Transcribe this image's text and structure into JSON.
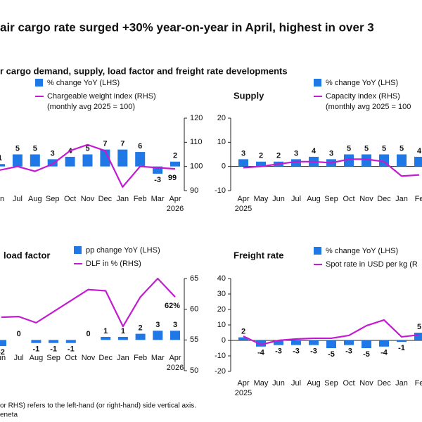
{
  "title": "air cargo rate surged +30% year-on-year in April, highest in over 3",
  "subtitle": "r cargo demand, supply, load factor and freight rate developments",
  "notes": [
    "or RHS) refers to the left-hand (or right-hand) side vertical axis.",
    "eneta"
  ],
  "chart_data": [
    {
      "type": "combo",
      "categories": [
        [
          "un"
        ],
        [
          "Jul"
        ],
        [
          "Aug"
        ],
        [
          "Sep"
        ],
        [
          "Oct"
        ],
        [
          "Nov"
        ],
        [
          "Dec"
        ],
        [
          "Jan"
        ],
        [
          "Feb"
        ],
        [
          "Mar"
        ],
        [
          "Apr",
          "2026"
        ]
      ],
      "ylim": [
        -10,
        20
      ],
      "y2lim": [
        90,
        120
      ],
      "y2ticks": [
        90,
        100,
        110,
        120
      ],
      "series": [
        {
          "type": "bar",
          "name": "% change YoY (LHS)",
          "color": "#1f78e6",
          "values": [
            1,
            5,
            5,
            3,
            4,
            5,
            7,
            7,
            6,
            -3,
            2
          ]
        },
        {
          "type": "line",
          "axis": "y2",
          "name": "Chargeable weight index (RHS)",
          "subname": "(monthly avg 2025 = 100)",
          "color": "#c21bd1",
          "values": [
            98.5,
            100,
            98,
            101,
            106.5,
            109,
            106.5,
            91.5,
            100,
            99.5,
            99
          ],
          "value_labels": [
            null,
            null,
            null,
            null,
            null,
            null,
            null,
            null,
            null,
            null,
            "99"
          ]
        }
      ]
    },
    {
      "type": "combo",
      "title": "Supply",
      "categories": [
        [
          "Apr",
          "2025"
        ],
        [
          "May"
        ],
        [
          "Jun"
        ],
        [
          "Jul"
        ],
        [
          "Aug"
        ],
        [
          "Sep"
        ],
        [
          "Oct"
        ],
        [
          "Nov"
        ],
        [
          "Dec"
        ],
        [
          "Jan"
        ],
        [
          "Fe"
        ]
      ],
      "ylim": [
        -10,
        20
      ],
      "yticks": [
        -10,
        0,
        10,
        20
      ],
      "y2lim": [
        90,
        120
      ],
      "series": [
        {
          "type": "bar",
          "name": "% change YoY (LHS)",
          "color": "#1f78e6",
          "values": [
            3,
            2,
            2,
            3,
            4,
            3,
            5,
            5,
            5,
            5,
            4
          ]
        },
        {
          "type": "line",
          "axis": "y2",
          "name": "Capacity index (RHS)",
          "subname": "(monthly avg 2025 = 100",
          "color": "#c21bd1",
          "values": [
            99.5,
            100,
            101,
            102,
            102,
            101.5,
            103,
            103,
            102,
            96,
            96.5
          ]
        }
      ]
    },
    {
      "type": "combo",
      "title": "load factor",
      "categories": [
        [
          "un"
        ],
        [
          "Jul"
        ],
        [
          "Aug"
        ],
        [
          "Sep"
        ],
        [
          "Oct"
        ],
        [
          "Nov"
        ],
        [
          "Dec"
        ],
        [
          "Jan"
        ],
        [
          "Feb"
        ],
        [
          "Mar"
        ],
        [
          "Apr",
          "2026"
        ]
      ],
      "ylim": [
        -10,
        20
      ],
      "y2lim": [
        50,
        65
      ],
      "y2ticks": [
        50,
        55,
        60,
        65
      ],
      "series": [
        {
          "type": "bar",
          "name": "pp change YoY (LHS)",
          "color": "#1f78e6",
          "values": [
            -2,
            0,
            -1,
            -1,
            -1,
            0,
            1,
            1,
            2,
            3,
            3
          ]
        },
        {
          "type": "line",
          "axis": "y2",
          "name": "DLF in % (RHS)",
          "color": "#c21bd1",
          "values": [
            58.7,
            58.8,
            57.8,
            59.6,
            61.4,
            63.2,
            63,
            57.2,
            62,
            65,
            62
          ],
          "value_labels": [
            null,
            null,
            null,
            null,
            null,
            null,
            null,
            null,
            null,
            null,
            "62%"
          ]
        }
      ]
    },
    {
      "type": "combo",
      "title": "Freight rate",
      "categories": [
        [
          "Apr",
          "2025"
        ],
        [
          "May"
        ],
        [
          "Jun"
        ],
        [
          "Jul"
        ],
        [
          "Aug"
        ],
        [
          "Sep"
        ],
        [
          "Oct"
        ],
        [
          "Nov"
        ],
        [
          "Dec"
        ],
        [
          "Jan"
        ],
        [
          "Fe"
        ]
      ],
      "ylim": [
        -20,
        40
      ],
      "yticks": [
        -20,
        -10,
        0,
        10,
        20,
        30,
        40
      ],
      "y2lim": [
        0,
        6
      ],
      "series": [
        {
          "type": "bar",
          "name": "% change YoY (LHS)",
          "color": "#1f78e6",
          "values": [
            2,
            -4,
            -3,
            -3,
            -3,
            -5,
            -3,
            -5,
            -4,
            -1,
            5
          ]
        },
        {
          "type": "line",
          "axis": "y2",
          "name": "Spot rate in USD per kg (R",
          "color": "#c21bd1",
          "values": [
            2.27,
            1.73,
            2.0,
            2.09,
            2.14,
            2.14,
            2.32,
            2.95,
            3.32,
            2.23,
            2.36
          ]
        }
      ]
    }
  ]
}
